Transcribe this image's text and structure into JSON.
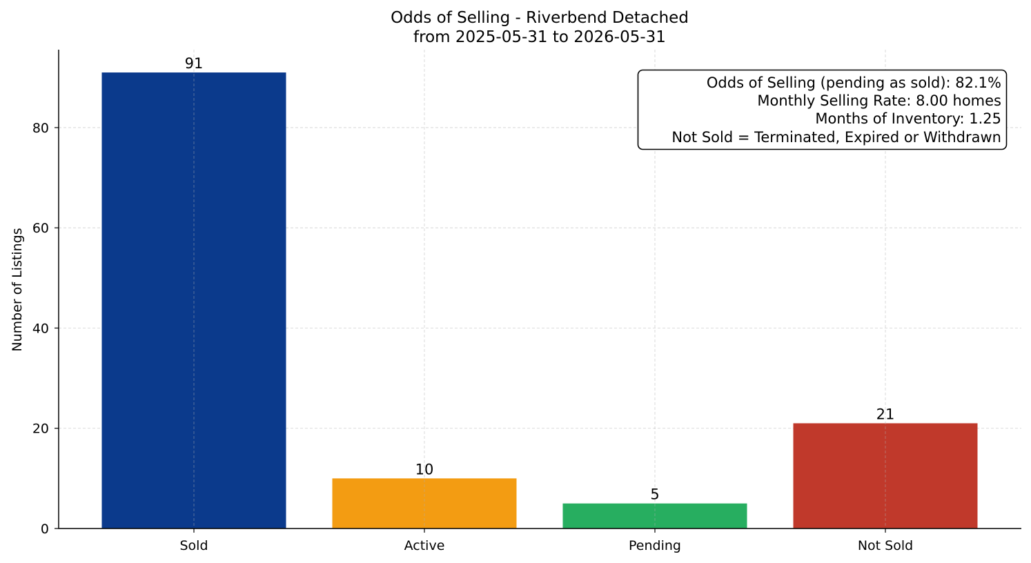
{
  "chart_data": {
    "type": "bar",
    "title": "Odds of Selling - Riverbend Detached",
    "subtitle": "from 2025-05-31 to 2026-05-31",
    "xlabel": "",
    "ylabel": "Number of Listings",
    "categories": [
      "Sold",
      "Active",
      "Pending",
      "Not Sold"
    ],
    "values": [
      91,
      10,
      5,
      21
    ],
    "colors": [
      "#0b3a8c",
      "#f39c12",
      "#27ae60",
      "#c0392b"
    ],
    "ylim": [
      0,
      95.55
    ],
    "yticks": [
      0,
      20,
      40,
      60,
      80
    ],
    "grid": true,
    "annotation": {
      "placement": "top-right",
      "lines": [
        "Odds of Selling (pending as sold): 82.1%",
        "Monthly Selling Rate: 8.00 homes",
        "Months of Inventory: 1.25",
        "Not Sold = Terminated, Expired or Withdrawn"
      ]
    }
  }
}
